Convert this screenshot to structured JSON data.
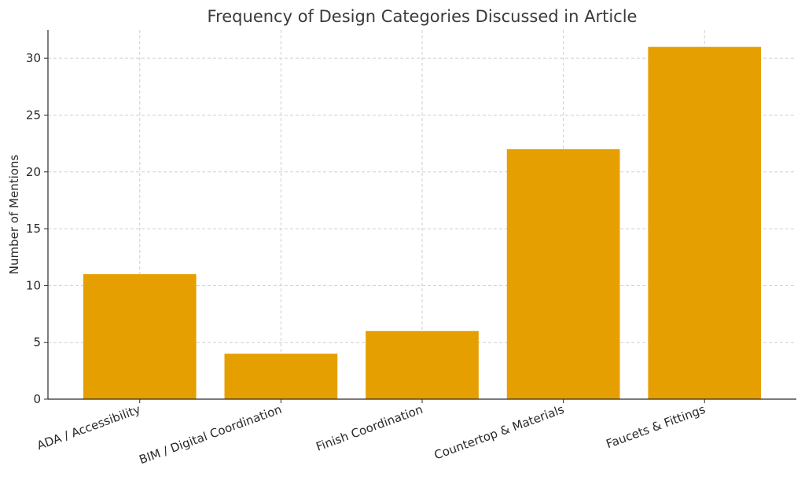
{
  "chart_data": {
    "type": "bar",
    "title": "Frequency of Design Categories Discussed in Article",
    "xlabel": "",
    "ylabel": "Number of Mentions",
    "categories": [
      "ADA / Accessibility",
      "BIM / Digital Coordination",
      "Finish Coordination",
      "Countertop & Materials",
      "Faucets & Fittings"
    ],
    "values": [
      11,
      4,
      6,
      22,
      31
    ],
    "ylim": [
      0,
      32.5
    ],
    "yticks": [
      0,
      5,
      10,
      15,
      20,
      25,
      30
    ],
    "grid": true,
    "bar_color": "#E69F00"
  }
}
